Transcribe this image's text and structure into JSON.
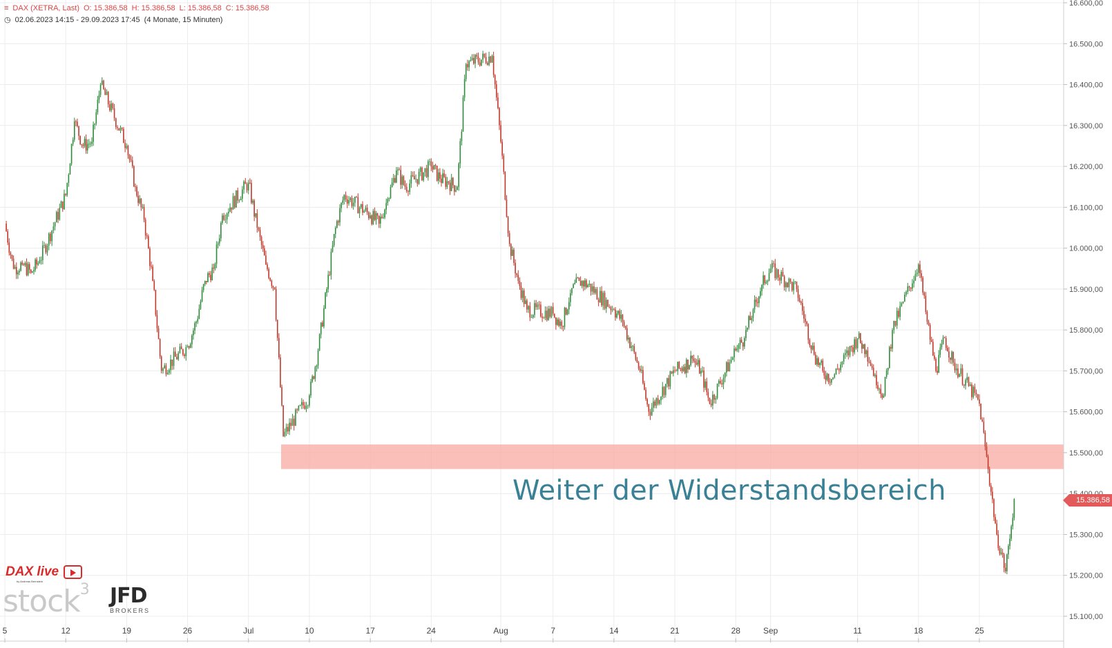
{
  "header": {
    "instrument": "DAX (XETRA, Last)",
    "ohlc": {
      "open": "O: 15.386,58",
      "high": "H: 15.386,58",
      "low": "L: 15.386,58",
      "close": "C: 15.386,58"
    },
    "range": "02.06.2023 14:15 - 29.09.2023 17:45",
    "range_info": "(4 Monate, 15 Minuten)"
  },
  "annotation": "Weiter der Widerstandsbereich",
  "last_price_label": "15.386,58",
  "logos": {
    "dax_live": "DAX live",
    "dax_live_sub": "by Andreas Bernstein",
    "stock3": "stock",
    "stock3_sup": "3",
    "jfd": "JFD",
    "jfd_sub": "BROKERS"
  },
  "colors": {
    "up": "#2e8b3a",
    "down": "#c0392b",
    "zone": "#f9a9a3",
    "annotation": "#3a8196",
    "last_price": "#e25a5a",
    "grid": "#ececec"
  },
  "chart_data": {
    "type": "line",
    "title": "DAX (XETRA, Last)",
    "interval": "15 Minuten",
    "y_axis": {
      "ticks": [
        15100,
        15200,
        15300,
        15400,
        15500,
        15600,
        15700,
        15800,
        15900,
        16000,
        16100,
        16200,
        16300,
        16400,
        16500,
        16600
      ],
      "tick_labels": [
        "15.100,00",
        "15.200,00",
        "15.300,00",
        "15.400,00",
        "15.500,00",
        "15.600,00",
        "15.700,00",
        "15.800,00",
        "15.900,00",
        "16.000,00",
        "16.100,00",
        "16.200,00",
        "16.300,00",
        "16.400,00",
        "16.500,00",
        "16.600,00"
      ],
      "range": [
        15050,
        16600
      ]
    },
    "x_axis": {
      "ticks": [
        "5",
        "12",
        "19",
        "26",
        "Jul",
        "10",
        "17",
        "24",
        "Aug",
        "7",
        "14",
        "21",
        "28",
        "Sep",
        "11",
        "18",
        "25"
      ]
    },
    "resistance_zone": {
      "low": 15460,
      "high": 15520
    },
    "last_price": 15386.58,
    "series": [
      {
        "name": "DAX",
        "x": [
          "2023-06-05",
          "2023-06-06",
          "2023-06-07",
          "2023-06-08",
          "2023-06-09",
          "2023-06-12",
          "2023-06-13",
          "2023-06-14",
          "2023-06-15",
          "2023-06-16",
          "2023-06-19",
          "2023-06-20",
          "2023-06-21",
          "2023-06-22",
          "2023-06-23",
          "2023-06-26",
          "2023-06-27",
          "2023-06-28",
          "2023-06-29",
          "2023-06-30",
          "2023-07-03",
          "2023-07-04",
          "2023-07-05",
          "2023-07-06",
          "2023-07-07",
          "2023-07-10",
          "2023-07-11",
          "2023-07-12",
          "2023-07-13",
          "2023-07-14",
          "2023-07-17",
          "2023-07-18",
          "2023-07-19",
          "2023-07-20",
          "2023-07-21",
          "2023-07-24",
          "2023-07-25",
          "2023-07-26",
          "2023-07-27",
          "2023-07-28",
          "2023-07-31",
          "2023-08-01",
          "2023-08-02",
          "2023-08-03",
          "2023-08-04",
          "2023-08-07",
          "2023-08-08",
          "2023-08-09",
          "2023-08-10",
          "2023-08-11",
          "2023-08-14",
          "2023-08-15",
          "2023-08-16",
          "2023-08-17",
          "2023-08-18",
          "2023-08-21",
          "2023-08-22",
          "2023-08-23",
          "2023-08-24",
          "2023-08-25",
          "2023-08-28",
          "2023-08-29",
          "2023-08-30",
          "2023-08-31",
          "2023-09-01",
          "2023-09-04",
          "2023-09-05",
          "2023-09-06",
          "2023-09-07",
          "2023-09-08",
          "2023-09-11",
          "2023-09-12",
          "2023-09-13",
          "2023-09-14",
          "2023-09-15",
          "2023-09-18",
          "2023-09-19",
          "2023-09-20",
          "2023-09-21",
          "2023-09-22",
          "2023-09-25",
          "2023-09-26",
          "2023-09-27",
          "2023-09-28",
          "2023-09-29"
        ],
        "values": [
          16060,
          15950,
          15960,
          15940,
          15970,
          16130,
          16310,
          16250,
          16260,
          16400,
          16250,
          16150,
          16070,
          15920,
          15700,
          15760,
          15820,
          15920,
          15950,
          16080,
          16160,
          16050,
          15960,
          15900,
          15540,
          15640,
          15750,
          15900,
          16050,
          16130,
          16080,
          16060,
          16120,
          16190,
          16150,
          16200,
          16170,
          16160,
          16150,
          16450,
          16470,
          16260,
          16010,
          15920,
          15850,
          15840,
          15810,
          15890,
          15920,
          15910,
          15850,
          15820,
          15760,
          15700,
          15600,
          15700,
          15710,
          15730,
          15700,
          15620,
          15750,
          15780,
          15850,
          15910,
          15950,
          15900,
          15820,
          15740,
          15700,
          15680,
          15780,
          15750,
          15690,
          15640,
          15800,
          15960,
          15820,
          15700,
          15780,
          15720,
          15620,
          15460,
          15300,
          15210,
          15386.58
        ]
      }
    ]
  }
}
